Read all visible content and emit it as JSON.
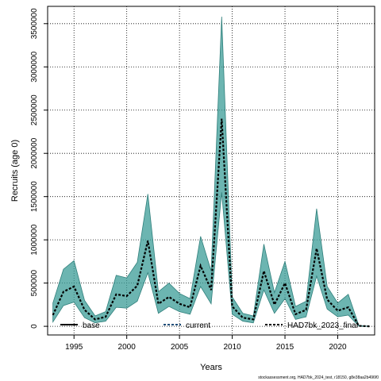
{
  "chart_data": {
    "type": "line",
    "xlabel": "Years",
    "ylabel": "Recruits (age 0)",
    "xlim": [
      1992.5,
      2023.5
    ],
    "ylim": [
      -100000,
      3700000
    ],
    "x_ticks": [
      1995,
      2000,
      2005,
      2010,
      2015,
      2020
    ],
    "y_ticks": [
      0,
      500000,
      1000000,
      1500000,
      2000000,
      2500000,
      3000000,
      3500000
    ],
    "grid": true,
    "legend_placement": "bottom",
    "footnote": "stockassessment.org, HAD7bk_2024_test, r18150, g8e38aa2b496f0",
    "colors": {
      "band": "#3b9c97",
      "band_edge": "#2f7f7b",
      "line": "#000000",
      "current_line": "#1f4e79"
    },
    "series": [
      {
        "name": "HAD7bk_2023_final",
        "x": [
          1993,
          1994,
          1995,
          1996,
          1997,
          1998,
          1999,
          2000,
          2001,
          2002,
          2003,
          2004,
          2005,
          2006,
          2007,
          2008,
          2009,
          2010,
          2011,
          2012,
          2013,
          2014,
          2015,
          2016,
          2017,
          2018,
          2019,
          2020,
          2021,
          2022,
          2023
        ],
        "values": [
          130000,
          400000,
          460000,
          190000,
          80000,
          110000,
          370000,
          350000,
          470000,
          990000,
          260000,
          340000,
          260000,
          220000,
          700000,
          420000,
          2400000,
          230000,
          100000,
          80000,
          640000,
          250000,
          500000,
          140000,
          190000,
          900000,
          310000,
          180000,
          220000,
          5000,
          0
        ],
        "lower": [
          50000,
          240000,
          280000,
          100000,
          40000,
          60000,
          220000,
          210000,
          290000,
          620000,
          150000,
          230000,
          170000,
          140000,
          460000,
          260000,
          1550000,
          140000,
          60000,
          40000,
          420000,
          150000,
          320000,
          80000,
          110000,
          580000,
          200000,
          110000,
          130000,
          2000,
          0
        ],
        "upper": [
          270000,
          660000,
          760000,
          300000,
          120000,
          170000,
          590000,
          560000,
          740000,
          1530000,
          400000,
          500000,
          380000,
          320000,
          1040000,
          640000,
          3580000,
          340000,
          150000,
          120000,
          950000,
          390000,
          750000,
          230000,
          290000,
          1360000,
          460000,
          270000,
          370000,
          10000,
          0
        ]
      },
      {
        "name": "base"
      },
      {
        "name": "current"
      }
    ]
  }
}
